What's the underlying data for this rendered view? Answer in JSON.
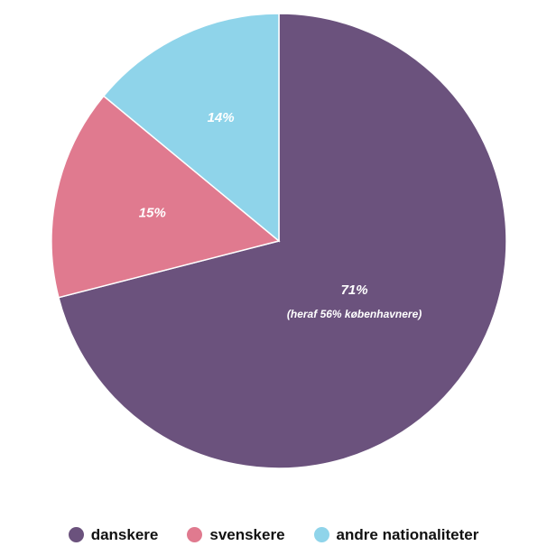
{
  "chart_data": {
    "type": "pie",
    "categories": [
      "danskere",
      "svenskere",
      "andre nationaliteter"
    ],
    "values": [
      71,
      15,
      14
    ],
    "slice_labels": [
      "71%",
      "15%",
      "14%"
    ],
    "annotations": [
      "(heraf 56% københavnere)"
    ],
    "colors": [
      "#6b527d",
      "#e07a8f",
      "#8fd4ea"
    ],
    "legend": {
      "position": "bottom",
      "entries": [
        "danskere",
        "svenskere",
        "andre nationaliteter"
      ]
    },
    "start": "12 o'clock",
    "direction": "clockwise"
  }
}
